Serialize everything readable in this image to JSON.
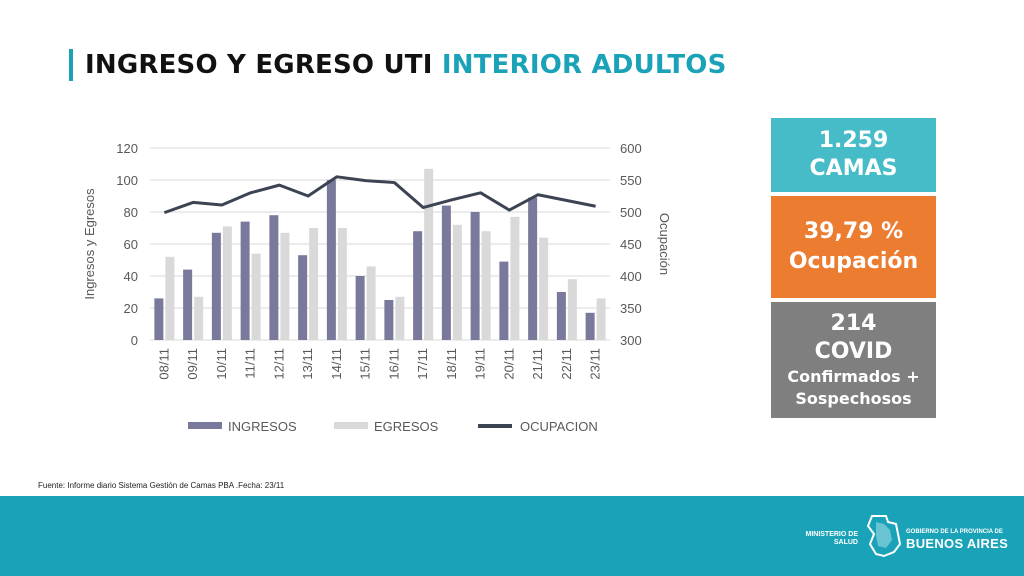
{
  "title": {
    "main": "INGRESO Y EGRESO UTI",
    "highlight": "INTERIOR ADULTOS"
  },
  "stats": {
    "beds": {
      "value": "1.259",
      "label": "CAMAS"
    },
    "occupancy": {
      "value": "39,79 %",
      "label": "Ocupación"
    },
    "covid": {
      "value": "214",
      "label": "COVID",
      "detail_line1": "Confirmados +",
      "detail_line2": "Sospechosos"
    }
  },
  "source": "Fuente: Informe diario Sistema Gestión de Camas PBA .Fecha: 23/11",
  "footer": {
    "ministerio_line1": "MINISTERIO DE",
    "ministerio_line2": "SALUD",
    "gob_small": "GOBIERNO DE LA PROVINCIA DE",
    "gob_big": "BUENOS AIRES"
  },
  "colors": {
    "accent": "#1aa3b8",
    "ingresos": "#79799c",
    "egresos": "#d9d9d9",
    "ocupacion": "#3c4352",
    "beds_box": "#45bcc7",
    "occupancy_box": "#ec7c30",
    "covid_box": "#7f7f7f"
  },
  "chart_data": {
    "type": "bar",
    "categories": [
      "08/11",
      "09/11",
      "10/11",
      "11/11",
      "12/11",
      "13/11",
      "14/11",
      "15/11",
      "16/11",
      "17/11",
      "18/11",
      "19/11",
      "20/11",
      "21/11",
      "22/11",
      "23/11"
    ],
    "series": [
      {
        "name": "INGRESOS",
        "type": "bar",
        "axis": "left",
        "values": [
          26,
          44,
          67,
          74,
          78,
          53,
          100,
          40,
          25,
          68,
          84,
          80,
          49,
          89,
          30,
          17
        ]
      },
      {
        "name": "EGRESOS",
        "type": "bar",
        "axis": "left",
        "values": [
          52,
          27,
          71,
          54,
          67,
          70,
          70,
          46,
          27,
          107,
          72,
          68,
          77,
          64,
          38,
          26
        ]
      },
      {
        "name": "OCUPACION",
        "type": "line",
        "axis": "right",
        "values": [
          499,
          515,
          511,
          530,
          542,
          525,
          555,
          549,
          546,
          507,
          519,
          530,
          503,
          527,
          518,
          509
        ]
      }
    ],
    "ylabel": "Ingresos y Egresos",
    "y2label": "Ocupación",
    "ylim": [
      0,
      120
    ],
    "yticks": [
      0,
      20,
      40,
      60,
      80,
      100,
      120
    ],
    "y2lim": [
      300,
      600
    ],
    "y2ticks": [
      300,
      350,
      400,
      450,
      500,
      550,
      600
    ],
    "grid": true,
    "legend_position": "bottom"
  }
}
